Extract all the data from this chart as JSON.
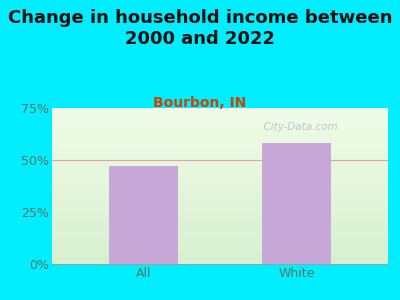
{
  "title": "Change in household income between\n2000 and 2022",
  "subtitle": "Bourbon, IN",
  "categories": [
    "All",
    "White"
  ],
  "values": [
    47,
    58
  ],
  "bar_color": "#c8a8d8",
  "title_fontsize": 13,
  "subtitle_fontsize": 10,
  "subtitle_color": "#cc4400",
  "title_color": "#111111",
  "background_outer": "#00eeff",
  "background_inner_top": "#f0fce8",
  "background_inner_bottom": "#d8f0d0",
  "ylim": [
    0,
    75
  ],
  "yticks": [
    0,
    25,
    50,
    75
  ],
  "tick_color": "#557766",
  "axis_label_color": "#557766",
  "grid_color": "#e8a0a0",
  "watermark_text": "  City-Data.com",
  "watermark_color": "#b0bec5"
}
